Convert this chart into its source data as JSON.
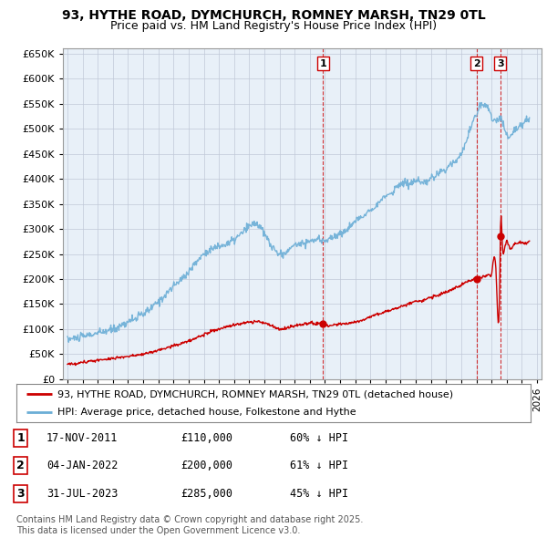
{
  "title": "93, HYTHE ROAD, DYMCHURCH, ROMNEY MARSH, TN29 0TL",
  "subtitle": "Price paid vs. HM Land Registry's House Price Index (HPI)",
  "hpi_color": "#6baed6",
  "price_color": "#cc0000",
  "background_color": "#ffffff",
  "chart_bg_color": "#e8f0f8",
  "grid_color": "#c0c8d8",
  "ylim": [
    0,
    660000
  ],
  "yticks": [
    0,
    50000,
    100000,
    150000,
    200000,
    250000,
    300000,
    350000,
    400000,
    450000,
    500000,
    550000,
    600000,
    650000
  ],
  "xlim_start": 1994.7,
  "xlim_end": 2026.3,
  "sale_dates": [
    2011.88,
    2022.01,
    2023.58
  ],
  "sale_prices": [
    110000,
    200000,
    285000
  ],
  "sale_labels": [
    "1",
    "2",
    "3"
  ],
  "legend_entries": [
    "93, HYTHE ROAD, DYMCHURCH, ROMNEY MARSH, TN29 0TL (detached house)",
    "HPI: Average price, detached house, Folkestone and Hythe"
  ],
  "table_rows": [
    [
      "1",
      "17-NOV-2011",
      "£110,000",
      "60% ↓ HPI"
    ],
    [
      "2",
      "04-JAN-2022",
      "£200,000",
      "61% ↓ HPI"
    ],
    [
      "3",
      "31-JUL-2023",
      "£285,000",
      "45% ↓ HPI"
    ]
  ],
  "footnote": "Contains HM Land Registry data © Crown copyright and database right 2025.\nThis data is licensed under the Open Government Licence v3.0."
}
